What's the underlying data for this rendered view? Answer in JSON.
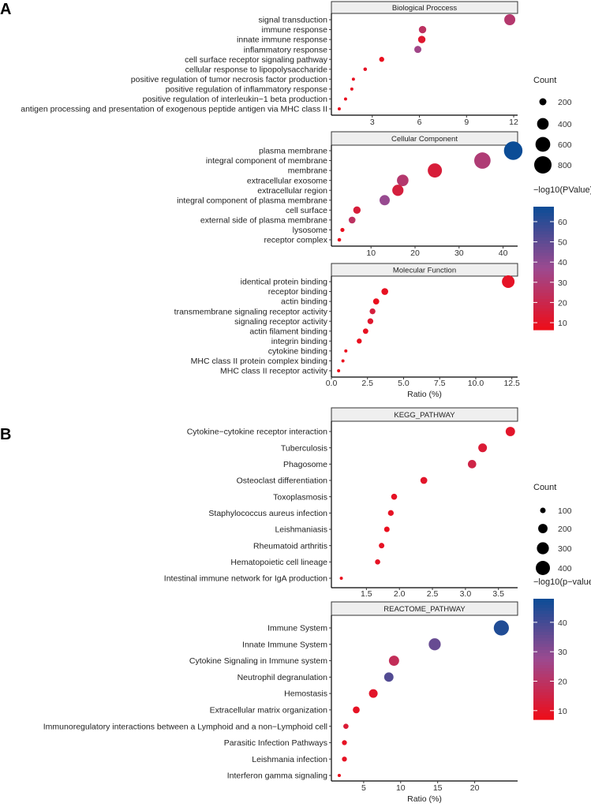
{
  "panel_labels": [
    "A",
    "B"
  ],
  "chart_data": [
    {
      "type": "scatter",
      "panel": "A",
      "title": "Biological Proccess",
      "xlabel": "",
      "xlim": [
        0.4,
        12.25
      ],
      "xticks": [
        3,
        6,
        9,
        12
      ],
      "xtick_labels": [
        "3",
        "6",
        "9",
        "12"
      ],
      "categories": [
        "signal transduction",
        "immune response",
        "innate immune response",
        "inflammatory response",
        "cell surface receptor signaling pathway",
        "cellular response to lipopolysaccharide",
        "positive regulation of tumor necrosis factor production",
        "positive regulation of inflammatory response",
        "positive regulation of interleukin−1 beta production",
        "antigen processing and presentation of exogenous peptide antigen via MHC class II"
      ],
      "ratio": [
        11.75,
        6.2,
        6.15,
        5.9,
        3.6,
        2.55,
        1.8,
        1.7,
        1.3,
        0.9
      ],
      "count": [
        370,
        210,
        210,
        200,
        140,
        110,
        90,
        90,
        85,
        80
      ],
      "neglog10p": [
        28,
        25,
        12,
        35,
        8,
        10,
        9,
        9,
        8,
        8
      ]
    },
    {
      "type": "scatter",
      "panel": "A",
      "title": "Cellular Component",
      "xlabel": "",
      "xlim": [
        1,
        43.3
      ],
      "xticks": [
        10,
        20,
        30,
        40
      ],
      "xtick_labels": [
        "10",
        "20",
        "30",
        "40"
      ],
      "categories": [
        "plasma membrane",
        "integral component of membrane",
        "membrane",
        "extracellular exosome",
        "extracellular region",
        "integral component of plasma membrane",
        "cell surface",
        "external side of plasma membrane",
        "lysosome",
        "receptor complex"
      ],
      "ratio": [
        42.3,
        35.3,
        24.5,
        17.2,
        16.1,
        13.1,
        6.8,
        5.7,
        3.5,
        2.8
      ],
      "count": [
        900,
        720,
        560,
        400,
        380,
        330,
        210,
        190,
        120,
        110
      ],
      "neglog10p": [
        68,
        30,
        15,
        28,
        16,
        38,
        15,
        25,
        8,
        8
      ]
    },
    {
      "type": "scatter",
      "panel": "A",
      "title": "Molecular Function",
      "xlabel": "Ratio (%)",
      "xlim": [
        0,
        12.9
      ],
      "xticks": [
        0,
        2.5,
        5,
        7.5,
        10,
        12.5
      ],
      "xtick_labels": [
        "0.0",
        "2.5",
        "5.0",
        "7.5",
        "10.0",
        "12.5"
      ],
      "categories": [
        "identical protein binding",
        "receptor binding",
        "actin binding",
        "transmembrane signaling receptor activity",
        "signaling receptor activity",
        "actin filament binding",
        "integrin binding",
        "cytokine binding",
        "MHC class II protein complex binding",
        "MHC class II receptor activity"
      ],
      "ratio": [
        12.25,
        3.7,
        3.1,
        2.85,
        2.7,
        2.37,
        1.93,
        1.0,
        0.8,
        0.5
      ],
      "count": [
        460,
        190,
        170,
        160,
        160,
        150,
        140,
        95,
        90,
        80
      ],
      "neglog10p": [
        10,
        9,
        8,
        16,
        12,
        9,
        8,
        8,
        8,
        6
      ]
    },
    {
      "type": "scatter",
      "panel": "B",
      "title": "KEGG_PATHWAY",
      "xlabel": "",
      "xlim": [
        0.97,
        3.79
      ],
      "xticks": [
        1.5,
        2.0,
        2.5,
        3.0,
        3.5
      ],
      "xtick_labels": [
        "1.5",
        "2.0",
        "2.5",
        "3.0",
        "3.5"
      ],
      "categories": [
        "Cytokine−cytokine receptor interaction",
        "Tuberculosis",
        "Phagosome",
        "Osteoclast differentiation",
        "Toxoplasmosis",
        "Staphylococcus aureus infection",
        "Leishmaniasis",
        "Rheumatoid arthritis",
        "Hematopoietic cell lineage",
        "Intestinal immune network for IgA production"
      ],
      "ratio": [
        3.68,
        3.26,
        3.1,
        2.37,
        1.92,
        1.87,
        1.81,
        1.73,
        1.67,
        1.12
      ],
      "count": [
        200,
        180,
        170,
        130,
        110,
        105,
        100,
        100,
        95,
        60
      ],
      "neglog10p": [
        10,
        12,
        15,
        10,
        9,
        9,
        8,
        9,
        9,
        8
      ]
    },
    {
      "type": "scatter",
      "panel": "B",
      "title": "REACTOME_PATHWAY",
      "xlabel": "Ratio (%)",
      "xlim": [
        0.64,
        25.8
      ],
      "xticks": [
        5,
        10,
        15,
        20
      ],
      "xtick_labels": [
        "5",
        "10",
        "15",
        "20"
      ],
      "categories": [
        "Immune System",
        "Innate Immune System",
        "Cytokine Signaling in Immune system",
        "Neutrophil degranulation",
        "Hemostasis",
        "Extracellular matrix organization",
        "Immunoregulatory interactions between a Lymphoid and a non−Lymphoid cell",
        "Parasitic Infection Pathways",
        "Leishmania infection",
        "Interferon gamma signaling"
      ],
      "ratio": [
        23.6,
        14.6,
        9.1,
        8.4,
        6.3,
        4.0,
        2.6,
        2.4,
        2.4,
        1.7
      ],
      "count": [
        450,
        300,
        230,
        200,
        180,
        130,
        95,
        90,
        90,
        65
      ],
      "neglog10p": [
        45,
        35,
        18,
        38,
        10,
        9,
        12,
        9,
        9,
        8
      ]
    }
  ],
  "legends": {
    "A": {
      "size_title": "Count",
      "size_values": [
        200,
        400,
        600,
        800
      ],
      "size_labels": [
        "200",
        "400",
        "600",
        "800"
      ],
      "color_title": "−log10(PValue)",
      "color_range": [
        6.5,
        67.4
      ],
      "color_ticks": [
        10,
        20,
        30,
        40,
        50,
        60
      ],
      "color_labels": [
        "10",
        "20",
        "30",
        "40",
        "50",
        "60"
      ]
    },
    "B": {
      "size_title": "Count",
      "size_values": [
        100,
        200,
        300,
        400
      ],
      "size_labels": [
        "100",
        "200",
        "300",
        "400"
      ],
      "color_title": "−log10(p−value)",
      "color_range": [
        7,
        48
      ],
      "color_ticks": [
        10,
        20,
        30,
        40
      ],
      "color_labels": [
        "10",
        "20",
        "30",
        "40"
      ]
    }
  },
  "colors": {
    "low": "#ee0c18",
    "mid": "#9c4a90",
    "high": "#0b4c96"
  }
}
